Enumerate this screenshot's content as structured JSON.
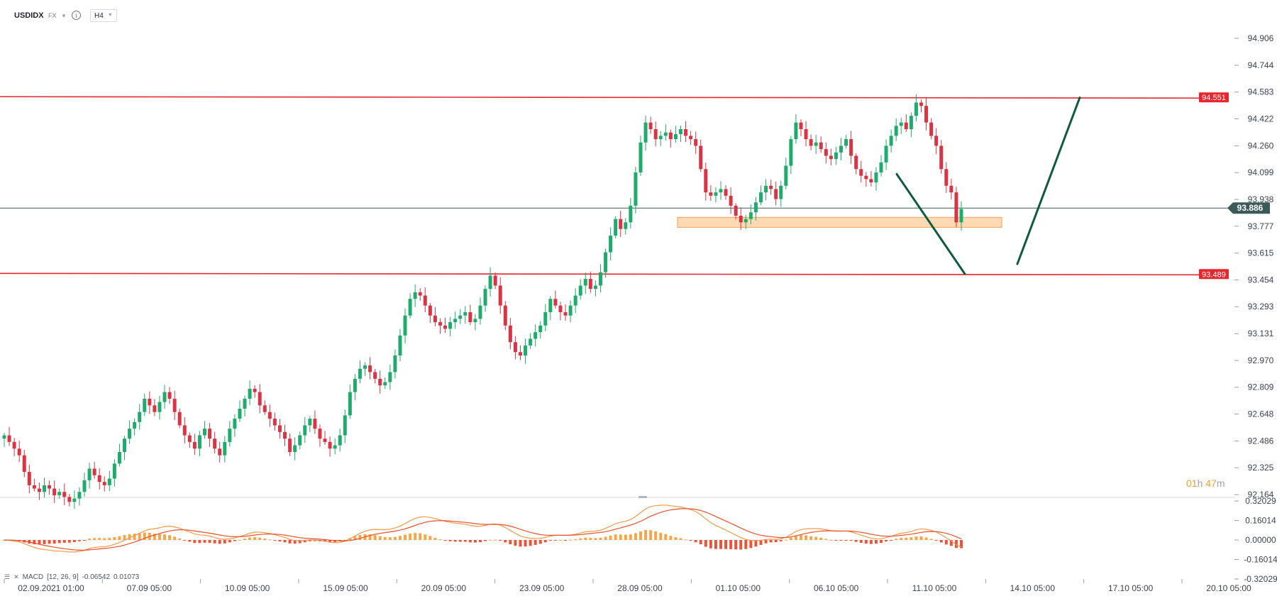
{
  "toolbar": {
    "symbol": "USDIDX",
    "market": "FX",
    "info_icon": "info-icon",
    "timeframe": "H4"
  },
  "countdown": {
    "hours": "01",
    "h_unit": "h",
    "minutes": "47",
    "m_unit": "m"
  },
  "macd_legend": {
    "label": "MACD",
    "params": "[12, 26, 9]",
    "macd_value": "-0.06542",
    "signal_value": "0.01073"
  },
  "colors": {
    "bull": "#1fab6c",
    "bear": "#d93444",
    "resistance": "#e8262e",
    "last_price": "#3d5a5a",
    "zone_fill": "#fdd4a6",
    "zone_stroke": "#f2a152",
    "trend_arrow": "#0f5a3e",
    "macd_line": "#f29a4a",
    "signal_line": "#e8512f",
    "hist_pos": "#f5a64c",
    "hist_neg": "#e8553a"
  },
  "chart_data": {
    "type": "candlestick",
    "price_axis": [
      "94.906",
      "94.744",
      "94.583",
      "94.422",
      "94.260",
      "94.099",
      "93.938",
      "93.777",
      "93.615",
      "93.454",
      "93.293",
      "93.131",
      "92.970",
      "92.809",
      "92.648",
      "92.486",
      "92.325",
      "92.164"
    ],
    "ylim": [
      92.164,
      94.906
    ],
    "x_labels": [
      "02.09.2021  01:00",
      "07.09  05:00",
      "10.09  05:00",
      "15.09  05:00",
      "20.09  05:00",
      "23.09  05:00",
      "28.09  05:00",
      "01.10  05:00",
      "06.10  05:00",
      "11.10  05:00",
      "14.10  05:00",
      "17.10  05:00",
      "20.10  05:00"
    ],
    "horizontal_levels": [
      {
        "value": 94.551,
        "label": "94.551"
      },
      {
        "value": 93.489,
        "label": "93.489"
      }
    ],
    "last_price": {
      "value": 93.886,
      "label": "93.886"
    },
    "support_zone": [
      93.77,
      93.83
    ],
    "projection": {
      "down": {
        "from": 94.09,
        "to": 93.49
      },
      "up": {
        "from": 93.55,
        "to": 94.55
      }
    },
    "macd_axis": [
      "0.32029",
      "0.16014",
      "0.00000",
      "-0.16014",
      "-0.32029"
    ],
    "macd_ylim": [
      -0.32029,
      0.32029
    ],
    "closes": [
      92.52,
      92.48,
      92.44,
      92.4,
      92.3,
      92.22,
      92.2,
      92.18,
      92.22,
      92.2,
      92.16,
      92.18,
      92.15,
      92.12,
      92.14,
      92.18,
      92.25,
      92.32,
      92.28,
      92.24,
      92.22,
      92.26,
      92.35,
      92.42,
      92.5,
      92.56,
      92.6,
      92.66,
      92.74,
      92.7,
      92.66,
      92.72,
      92.78,
      92.74,
      92.66,
      92.58,
      92.52,
      92.48,
      92.44,
      92.52,
      92.56,
      92.5,
      92.44,
      92.4,
      92.48,
      92.56,
      92.62,
      92.68,
      92.74,
      92.8,
      92.78,
      92.7,
      92.66,
      92.62,
      92.58,
      92.54,
      92.5,
      92.42,
      92.46,
      92.52,
      92.58,
      92.62,
      92.56,
      92.5,
      92.48,
      92.44,
      92.46,
      92.52,
      92.64,
      92.78,
      92.86,
      92.92,
      92.94,
      92.9,
      92.86,
      92.82,
      92.84,
      92.9,
      93.0,
      93.12,
      93.24,
      93.34,
      93.38,
      93.36,
      93.3,
      93.24,
      93.2,
      93.18,
      93.16,
      93.2,
      93.22,
      93.24,
      93.26,
      93.2,
      93.22,
      93.3,
      93.4,
      93.48,
      93.42,
      93.3,
      93.18,
      93.08,
      93.02,
      93.0,
      93.06,
      93.1,
      93.14,
      93.18,
      93.26,
      93.34,
      93.3,
      93.26,
      93.24,
      93.3,
      93.36,
      93.42,
      93.46,
      93.4,
      93.42,
      93.5,
      93.62,
      93.72,
      93.82,
      93.76,
      93.8,
      93.9,
      94.1,
      94.28,
      94.4,
      94.36,
      94.3,
      94.32,
      94.34,
      94.3,
      94.33,
      94.36,
      94.32,
      94.3,
      94.26,
      94.12,
      93.98,
      93.96,
      93.98,
      94.0,
      93.96,
      93.9,
      93.84,
      93.8,
      93.82,
      93.86,
      93.92,
      93.98,
      94.02,
      94.0,
      93.94,
      94.02,
      94.14,
      94.3,
      94.4,
      94.36,
      94.3,
      94.26,
      94.28,
      94.24,
      94.2,
      94.18,
      94.22,
      94.26,
      94.3,
      94.2,
      94.12,
      94.08,
      94.06,
      94.04,
      94.1,
      94.16,
      94.26,
      94.32,
      94.38,
      94.4,
      94.36,
      94.44,
      94.52,
      94.5,
      94.4,
      94.32,
      94.26,
      94.12,
      94.02,
      93.98,
      93.8,
      93.88
    ]
  }
}
